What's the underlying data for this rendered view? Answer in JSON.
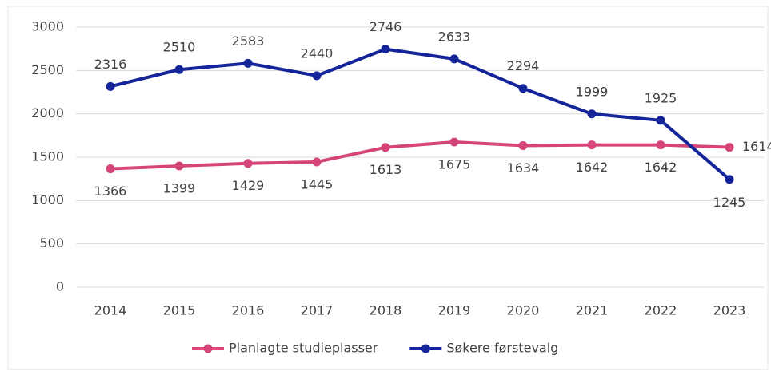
{
  "chart_data": {
    "type": "line",
    "categories": [
      "2014",
      "2015",
      "2016",
      "2017",
      "2018",
      "2019",
      "2020",
      "2021",
      "2022",
      "2023"
    ],
    "series": [
      {
        "name": "Planlagte studieplasser",
        "color": "#d6457a",
        "values": [
          1366,
          1399,
          1429,
          1445,
          1613,
          1675,
          1634,
          1642,
          1642,
          1614
        ]
      },
      {
        "name": "Søkere førstevalg",
        "color": "#14259a",
        "values": [
          2316,
          2510,
          2583,
          2440,
          2746,
          2633,
          2294,
          1999,
          1925,
          1245
        ]
      }
    ],
    "ylim": [
      0,
      3000
    ],
    "yticks": [
      0,
      500,
      1000,
      1500,
      2000,
      2500,
      3000
    ],
    "grid": true,
    "legend": "bottom"
  }
}
